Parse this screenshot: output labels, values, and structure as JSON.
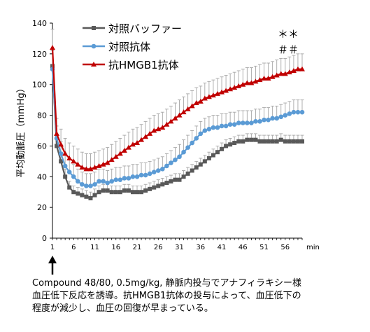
{
  "chart_data": {
    "type": "line",
    "xlabel": "",
    "x_unit": "min",
    "ylabel": "平均動脈圧（mmHg）",
    "ylim": [
      0,
      140
    ],
    "yticks": [
      0,
      20,
      40,
      60,
      80,
      100,
      120,
      140
    ],
    "xlim": [
      1,
      60
    ],
    "xticks": [
      1,
      6,
      11,
      16,
      21,
      26,
      31,
      36,
      41,
      46,
      51,
      56
    ],
    "x": [
      1,
      2,
      3,
      4,
      5,
      6,
      7,
      8,
      9,
      10,
      11,
      12,
      13,
      14,
      15,
      16,
      17,
      18,
      19,
      20,
      21,
      22,
      23,
      24,
      25,
      26,
      27,
      28,
      29,
      30,
      31,
      32,
      33,
      34,
      35,
      36,
      37,
      38,
      39,
      40,
      41,
      42,
      43,
      44,
      45,
      46,
      47,
      48,
      49,
      50,
      51,
      52,
      53,
      54,
      55,
      56,
      57,
      58,
      59,
      60
    ],
    "legend_position": "top-left",
    "significance_marks": [
      "＊＊",
      "＃＃"
    ],
    "series": [
      {
        "name": "対照バッファー",
        "color": "#595959",
        "marker": "square",
        "values": [
          112,
          60,
          50,
          40,
          33,
          30,
          29,
          28,
          27,
          26,
          28,
          30,
          31,
          31,
          30,
          30,
          30,
          31,
          31,
          30,
          30,
          30,
          31,
          32,
          33,
          34,
          35,
          36,
          37,
          38,
          38,
          40,
          42,
          44,
          46,
          48,
          50,
          52,
          54,
          56,
          58,
          60,
          61,
          62,
          63,
          63,
          64,
          64,
          64,
          63,
          63,
          63,
          63,
          63,
          64,
          63,
          63,
          63,
          63,
          63
        ],
        "errors": [
          10,
          6,
          6,
          5,
          4,
          4,
          4,
          4,
          4,
          4,
          4,
          4,
          4,
          4,
          4,
          4,
          4,
          4,
          4,
          4,
          4,
          4,
          4,
          4,
          4,
          4,
          4,
          4,
          4,
          4,
          4,
          4,
          4,
          4,
          4,
          4,
          4,
          4,
          4,
          4,
          4,
          4,
          4,
          4,
          4,
          4,
          4,
          4,
          4,
          4,
          4,
          4,
          4,
          4,
          4,
          4,
          4,
          4,
          4,
          4
        ]
      },
      {
        "name": "対照抗体",
        "color": "#5b9bd5",
        "marker": "circle",
        "values": [
          110,
          65,
          55,
          47,
          43,
          40,
          37,
          35,
          34,
          34,
          35,
          37,
          37,
          36,
          37,
          38,
          38,
          39,
          39,
          40,
          40,
          41,
          41,
          42,
          43,
          44,
          45,
          47,
          49,
          51,
          53,
          56,
          59,
          62,
          65,
          68,
          70,
          71,
          72,
          72,
          73,
          73,
          74,
          74,
          75,
          75,
          75,
          75,
          76,
          76,
          77,
          77,
          78,
          78,
          79,
          80,
          81,
          82,
          82,
          82
        ],
        "errors": [
          12,
          8,
          8,
          8,
          8,
          8,
          8,
          8,
          8,
          8,
          8,
          8,
          8,
          8,
          8,
          8,
          8,
          8,
          8,
          8,
          8,
          8,
          8,
          8,
          8,
          8,
          8,
          8,
          8,
          8,
          8,
          8,
          8,
          8,
          8,
          8,
          8,
          8,
          8,
          8,
          8,
          8,
          8,
          8,
          8,
          8,
          8,
          8,
          8,
          8,
          8,
          8,
          8,
          8,
          8,
          8,
          8,
          8,
          8,
          8
        ]
      },
      {
        "name": "抗HMGB1抗体",
        "color": "#c00000",
        "marker": "triangle",
        "values": [
          124,
          68,
          61,
          55,
          52,
          50,
          48,
          46,
          45,
          45,
          46,
          47,
          48,
          49,
          51,
          53,
          55,
          57,
          59,
          61,
          62,
          64,
          66,
          68,
          70,
          71,
          72,
          74,
          76,
          78,
          80,
          82,
          84,
          86,
          88,
          89,
          91,
          92,
          93,
          94,
          95,
          96,
          97,
          98,
          99,
          100,
          101,
          101,
          102,
          103,
          104,
          104,
          105,
          106,
          107,
          107,
          108,
          109,
          110,
          110
        ],
        "errors": [
          12,
          10,
          10,
          10,
          10,
          10,
          10,
          10,
          10,
          10,
          10,
          10,
          10,
          10,
          10,
          10,
          10,
          10,
          10,
          10,
          10,
          10,
          10,
          10,
          10,
          10,
          10,
          10,
          10,
          10,
          10,
          10,
          10,
          10,
          10,
          10,
          10,
          10,
          10,
          10,
          10,
          10,
          10,
          10,
          10,
          10,
          10,
          10,
          10,
          10,
          10,
          10,
          10,
          10,
          10,
          10,
          10,
          10,
          10,
          10
        ]
      }
    ]
  },
  "caption": {
    "line1": "Compound 48/80, 0.5mg/kg, 静脈内投与でアナフィラキシー様",
    "line2": "血圧低下反応を誘導。抗HMGB1抗体の投与によって、血圧低下の",
    "line3": "程度が減少し、血圧の回復が早まっている。"
  }
}
